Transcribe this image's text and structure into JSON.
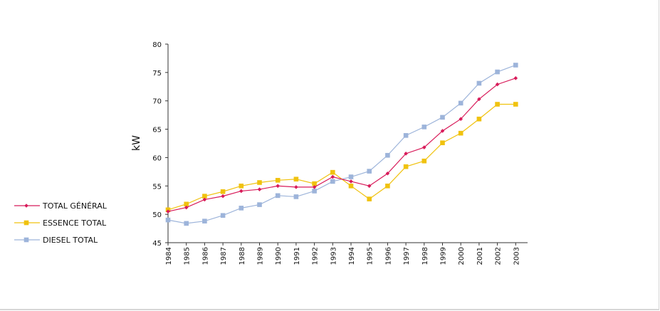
{
  "chart_data": {
    "type": "line",
    "title": "",
    "xlabel": "",
    "ylabel": "kW",
    "ylim": [
      45,
      80
    ],
    "yticks": [
      45,
      50,
      55,
      60,
      65,
      70,
      75,
      80
    ],
    "grid": false,
    "legend_position": "left",
    "categories": [
      "1984",
      "1985",
      "1986",
      "1987",
      "1988",
      "1989",
      "1990",
      "1991",
      "1992",
      "1993",
      "1994",
      "1995",
      "1996",
      "1997",
      "1998",
      "1999",
      "2000",
      "2001",
      "2002",
      "2003"
    ],
    "series": [
      {
        "name": "TOTAL GÉNÉRAL",
        "color": "#d81b5a",
        "marker": "diamond",
        "values": [
          50.5,
          51.2,
          52.6,
          53.2,
          54.1,
          54.4,
          55.0,
          54.8,
          54.8,
          56.6,
          55.8,
          55.0,
          57.2,
          60.7,
          61.8,
          64.7,
          66.8,
          70.3,
          72.9,
          74.0
        ]
      },
      {
        "name": "ESSENCE TOTAL",
        "color": "#f0c20e",
        "marker": "square",
        "values": [
          50.8,
          51.8,
          53.2,
          54.0,
          55.0,
          55.6,
          56.0,
          56.2,
          55.4,
          57.4,
          55.0,
          52.7,
          55.0,
          58.4,
          59.4,
          62.6,
          64.3,
          66.8,
          69.4,
          69.4
        ]
      },
      {
        "name": "DIESEL TOTAL",
        "color": "#9db4da",
        "marker": "square",
        "values": [
          49.0,
          48.4,
          48.8,
          49.8,
          51.1,
          51.7,
          53.3,
          53.1,
          54.1,
          55.8,
          56.6,
          57.6,
          60.4,
          63.9,
          65.4,
          67.1,
          69.6,
          73.1,
          75.1,
          76.3
        ]
      }
    ]
  }
}
